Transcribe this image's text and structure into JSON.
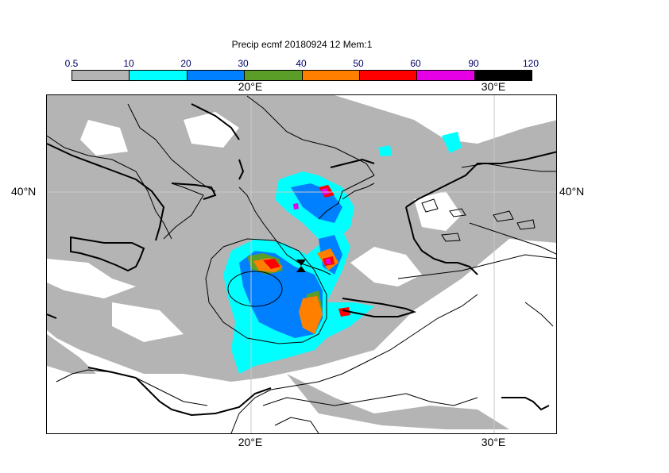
{
  "title": "Precip ecmf 20180924 12 Mem:1",
  "colorbar": {
    "ticks": [
      "0.5",
      "10",
      "20",
      "30",
      "40",
      "50",
      "60",
      "90",
      "120"
    ],
    "colors": [
      "#b4b4b4",
      "#00ffff",
      "#0080ff",
      "#5a9e28",
      "#ff8000",
      "#ff0000",
      "#e600e6",
      "#000000"
    ]
  },
  "axes": {
    "lon_top": [
      "20°E",
      "30°E"
    ],
    "lon_bottom": [
      "20°E",
      "30°E"
    ],
    "lat_left": [
      "40°N"
    ],
    "lat_right": [
      "40°N"
    ]
  },
  "map": {
    "region": "Eastern Mediterranean / Greece / Ionian Sea",
    "features": [
      "precipitation-field",
      "coastlines",
      "country-borders",
      "cyclone-contours",
      "gridlines"
    ]
  }
}
